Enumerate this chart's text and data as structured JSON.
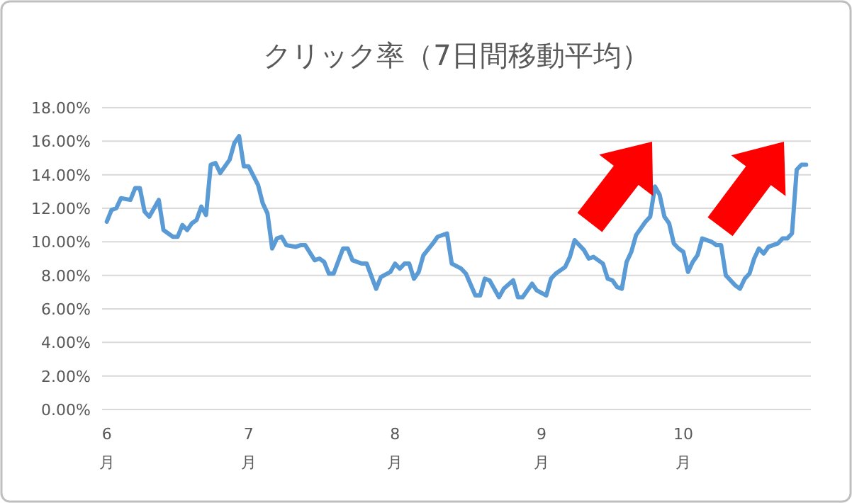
{
  "chart_data": {
    "type": "line",
    "title": "クリック率（7日間移動平均）",
    "x": [
      "--06-01",
      "--06-02",
      "--06-03",
      "--06-04",
      "--06-06",
      "--06-07",
      "--06-08",
      "--06-09",
      "--06-10",
      "--06-12",
      "--06-13",
      "--06-15",
      "--06-16",
      "--06-17",
      "--06-18",
      "--06-19",
      "--06-20",
      "--06-21",
      "--06-22",
      "--06-23",
      "--06-24",
      "--06-25",
      "--06-27",
      "--06-28",
      "--06-29",
      "--06-30",
      "--07-01",
      "--07-03",
      "--07-04",
      "--07-05",
      "--07-06",
      "--07-07",
      "--07-08",
      "--07-09",
      "--07-11",
      "--07-12",
      "--07-13",
      "--07-15",
      "--07-16",
      "--07-17",
      "--07-18",
      "--07-19",
      "--07-21",
      "--07-22",
      "--07-23",
      "--07-25",
      "--07-26",
      "--07-28",
      "--07-29",
      "--07-31",
      "--08-01",
      "--08-02",
      "--08-03",
      "--08-04",
      "--08-05",
      "--08-06",
      "--08-07",
      "--08-09",
      "--08-10",
      "--08-12",
      "--08-13",
      "--08-15",
      "--08-16",
      "--08-18",
      "--08-19",
      "--08-20",
      "--08-21",
      "--08-23",
      "--08-24",
      "--08-26",
      "--08-27",
      "--08-28",
      "--08-30",
      "--08-31",
      "--09-02",
      "--09-03",
      "--09-04",
      "--09-06",
      "--09-07",
      "--09-08",
      "--09-10",
      "--09-11",
      "--09-12",
      "--09-14",
      "--09-15",
      "--09-16",
      "--09-17",
      "--09-18",
      "--09-19",
      "--09-20",
      "--09-21",
      "--09-23",
      "--09-24",
      "--09-25",
      "--09-26",
      "--09-27",
      "--09-28",
      "--09-29",
      "--09-30",
      "--10-01",
      "--10-02",
      "--10-03",
      "--10-04",
      "--10-05",
      "--10-07",
      "--10-08",
      "--10-09",
      "--10-10",
      "--10-12",
      "--10-13",
      "--10-14",
      "--10-15",
      "--10-16",
      "--10-17",
      "--10-18",
      "--10-19",
      "--10-21",
      "--10-22",
      "--10-23",
      "--10-24",
      "--10-25",
      "--10-26",
      "--10-27"
    ],
    "series": [
      {
        "color": "#5b9bd5",
        "values": [
          11.2,
          11.9,
          12.0,
          12.6,
          12.5,
          13.2,
          13.2,
          11.8,
          11.5,
          12.5,
          10.7,
          10.3,
          10.3,
          11.0,
          10.7,
          11.1,
          11.3,
          12.1,
          11.6,
          14.6,
          14.7,
          14.1,
          14.9,
          15.9,
          16.3,
          14.5,
          14.5,
          13.4,
          12.3,
          11.7,
          9.6,
          10.2,
          10.3,
          9.8,
          9.7,
          9.8,
          9.8,
          8.9,
          9.0,
          8.8,
          8.1,
          8.1,
          9.6,
          9.6,
          8.9,
          8.7,
          8.7,
          7.2,
          7.9,
          8.2,
          8.7,
          8.4,
          8.7,
          8.7,
          7.8,
          8.2,
          9.2,
          9.9,
          10.3,
          10.5,
          8.7,
          8.4,
          8.1,
          6.8,
          6.8,
          7.8,
          7.7,
          6.7,
          7.2,
          7.7,
          6.7,
          6.7,
          7.5,
          7.1,
          6.8,
          7.8,
          8.1,
          8.5,
          9.1,
          10.1,
          9.5,
          9.0,
          9.1,
          8.7,
          7.8,
          7.7,
          7.3,
          7.2,
          8.8,
          9.4,
          10.4,
          11.2,
          11.5,
          13.3,
          12.8,
          11.5,
          11.1,
          9.9,
          9.6,
          9.4,
          8.2,
          8.8,
          9.2,
          10.2,
          10.0,
          9.8,
          9.8,
          8.0,
          7.4,
          7.2,
          7.8,
          8.1,
          9.0,
          9.6,
          9.3,
          9.7,
          9.9,
          10.2,
          10.2,
          10.5,
          14.3,
          14.6,
          14.6
        ]
      }
    ],
    "xlim": [
      "--05-31",
      "--10-28"
    ],
    "xticks": [
      {
        "value": "--06-01",
        "label": "6\n月"
      },
      {
        "value": "--07-01",
        "label": "7\n月"
      },
      {
        "value": "--08-01",
        "label": "8\n月"
      },
      {
        "value": "--09-01",
        "label": "9\n月"
      },
      {
        "value": "--10-01",
        "label": "10\n月"
      }
    ],
    "ylim": [
      0,
      18
    ],
    "yticks": [
      {
        "value": 0,
        "label": "0.00%"
      },
      {
        "value": 2,
        "label": "2.00%"
      },
      {
        "value": 4,
        "label": "4.00%"
      },
      {
        "value": 6,
        "label": "6.00%"
      },
      {
        "value": 8,
        "label": "8.00%"
      },
      {
        "value": 10,
        "label": "10.00%"
      },
      {
        "value": 12,
        "label": "12.00%"
      },
      {
        "value": 14,
        "label": "14.00%"
      },
      {
        "value": 16,
        "label": "16.00%"
      },
      {
        "value": 18,
        "label": "18.00%"
      }
    ],
    "grid": "y",
    "marker": "none",
    "line_style": "solid"
  }
}
